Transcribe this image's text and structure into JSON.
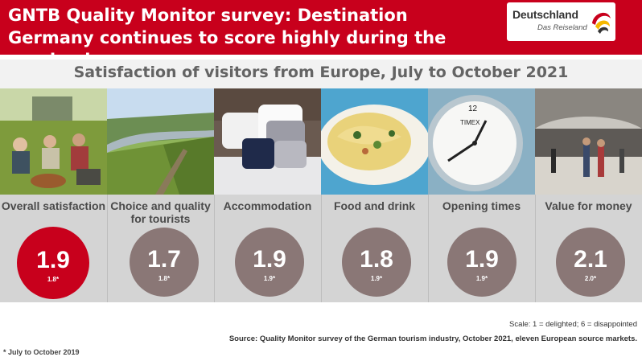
{
  "header": {
    "title": "GNTB Quality Monitor survey: Destination Germany continues to score highly during the pandemic",
    "background_color": "#c8001c"
  },
  "logo": {
    "wordmark": "Deutschland",
    "tagline": "Das Reiseland"
  },
  "subtitle": "Satisfaction of visitors from Europe, July to October 2021",
  "categories": [
    {
      "label": "Overall satisfaction",
      "score": "1.9",
      "previous": "1.8*",
      "highlight": true
    },
    {
      "label": "Choice and quality for tourists",
      "score": "1.7",
      "previous": "1.8*",
      "highlight": false
    },
    {
      "label": "Accommodation",
      "score": "1.9",
      "previous": "1.9*",
      "highlight": false
    },
    {
      "label": "Food and drink",
      "score": "1.8",
      "previous": "1.9*",
      "highlight": false
    },
    {
      "label": "Opening times",
      "score": "1.9",
      "previous": "1.9*",
      "highlight": false
    },
    {
      "label": "Value for money",
      "score": "2.1",
      "previous": "2.0*",
      "highlight": false
    }
  ],
  "scale_note": "Scale: 1 = delighted; 6 = disappointed",
  "source_note": "Source: Quality Monitor survey of the German tourism industry, October 2021, eleven European source markets.",
  "footnote": "* July to October 2019",
  "colors": {
    "accent_red": "#c8001c",
    "circle_grey": "#8a7776",
    "label_band": "#d4d4d4"
  },
  "photos": [
    "friends-picnic-vineyard",
    "river-valley-vineyard",
    "bed-pillows",
    "pasta-dish",
    "alarm-clock",
    "shopping-arcade"
  ]
}
